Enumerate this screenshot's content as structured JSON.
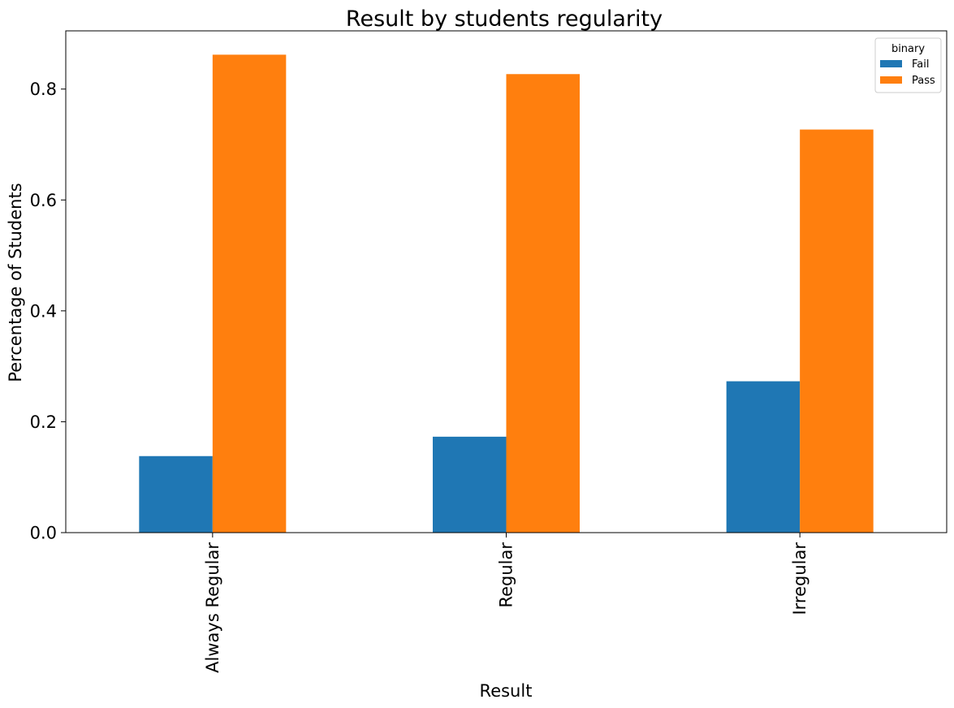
{
  "chart_data": {
    "type": "bar",
    "title": "Result by students regularity",
    "xlabel": "Result",
    "ylabel": "Percentage of Students",
    "categories": [
      "Always Regular",
      "Regular",
      "Irregular"
    ],
    "series": [
      {
        "name": "Fail",
        "values": [
          0.138,
          0.173,
          0.273
        ],
        "color": "#1f77b4"
      },
      {
        "name": "Pass",
        "values": [
          0.862,
          0.827,
          0.727
        ],
        "color": "#ff7f0e"
      }
    ],
    "ylim": [
      0,
      0.905
    ],
    "yticks": [
      0.0,
      0.2,
      0.4,
      0.6,
      0.8
    ],
    "ytick_labels": [
      "0.0",
      "0.2",
      "0.4",
      "0.6",
      "0.8"
    ],
    "legend": {
      "title": "binary",
      "placement": "top-right"
    },
    "grid": false
  }
}
